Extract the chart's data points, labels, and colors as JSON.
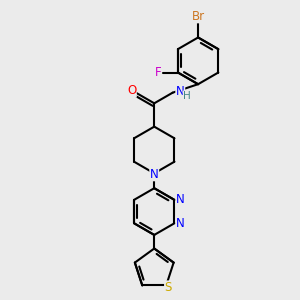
{
  "bg_color": "#ebebeb",
  "bond_color": "#000000",
  "Br_color": "#cc7722",
  "F_color": "#cc00cc",
  "N_color": "#0000ff",
  "O_color": "#ff0000",
  "S_color": "#ccaa00",
  "H_color": "#448888",
  "lw": 1.5,
  "fs": 8.5,
  "fig_w": 3.0,
  "fig_h": 3.0,
  "dpi": 100,
  "xlim": [
    -2.5,
    2.5
  ],
  "ylim": [
    -3.5,
    3.5
  ]
}
